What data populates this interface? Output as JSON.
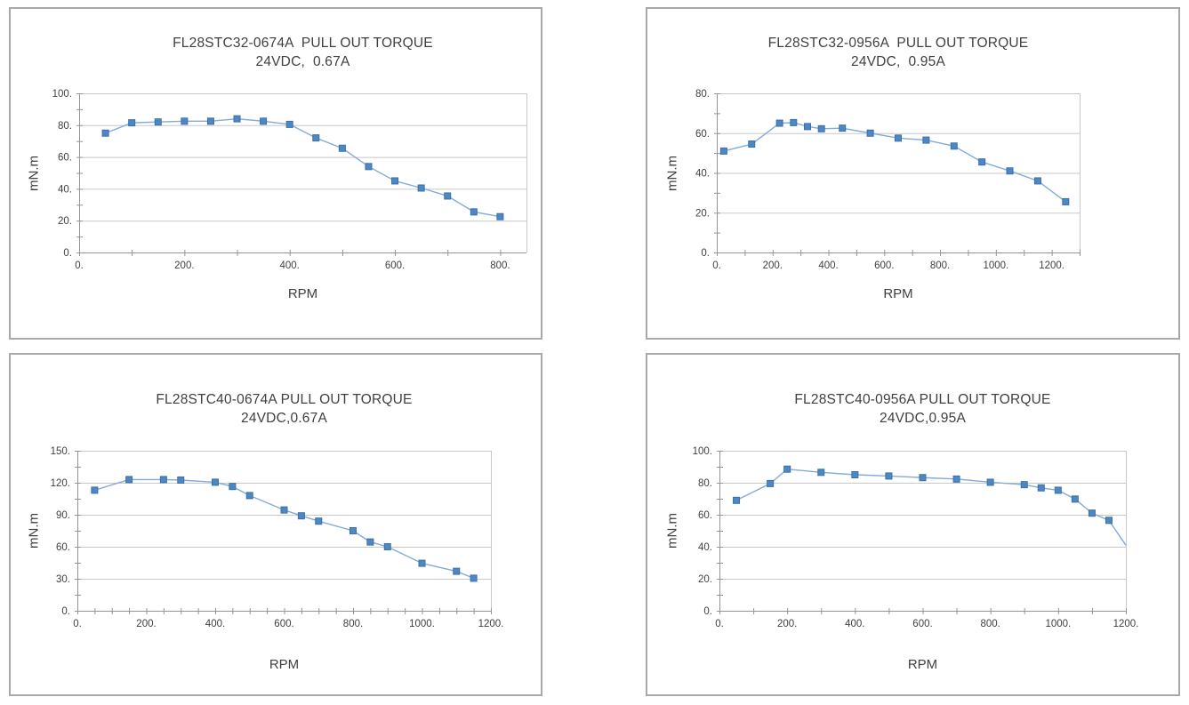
{
  "colors": {
    "marker_fill": "#4e88c4",
    "marker_border": "#3a70a8",
    "line": "#82abd8",
    "grid": "#c8c8c8",
    "axis": "#949494",
    "text": "#3f3f3f",
    "tile_border": "#a9a9a9"
  },
  "chart_data": [
    {
      "type": "line",
      "title": "FL28STC32-0674A  PULL OUT TORQUE",
      "subtitle": "24VDC,  0.67A",
      "xlabel": "RPM",
      "ylabel": "mN.m",
      "xlim": [
        0,
        850
      ],
      "ylim": [
        0,
        100
      ],
      "x_major": 200,
      "x_minor": 100,
      "y_major": 20,
      "y_minor": 10,
      "x_ticklabels": [
        "0.",
        "200.",
        "400.",
        "600.",
        "800."
      ],
      "y_ticklabels": [
        "0.",
        "20.",
        "40.",
        "60.",
        "80.",
        "100."
      ],
      "grid": "horizontal",
      "legend": "none",
      "points": [
        [
          50,
          75
        ],
        [
          100,
          81.5
        ],
        [
          150,
          82
        ],
        [
          200,
          82.5
        ],
        [
          250,
          82.5
        ],
        [
          300,
          84
        ],
        [
          350,
          82.5
        ],
        [
          400,
          80.5
        ],
        [
          450,
          72
        ],
        [
          500,
          65.5
        ],
        [
          550,
          54
        ],
        [
          600,
          45
        ],
        [
          650,
          40.5
        ],
        [
          700,
          35.5
        ],
        [
          750,
          25.5
        ],
        [
          800,
          22.5
        ]
      ],
      "last_point_has_marker": true
    },
    {
      "type": "line",
      "title": "FL28STC32-0956A  PULL OUT TORQUE",
      "subtitle": "24VDC,  0.95A",
      "xlabel": "RPM",
      "ylabel": "mN.m",
      "xlim": [
        0,
        1300
      ],
      "ylim": [
        0,
        80
      ],
      "x_major": 200,
      "x_minor": 100,
      "y_major": 20,
      "y_minor": 10,
      "x_ticklabels": [
        "0.",
        "200.",
        "400.",
        "600.",
        "800.",
        "1000.",
        "1200."
      ],
      "y_ticklabels": [
        "0.",
        "20.",
        "40.",
        "60.",
        "80."
      ],
      "grid": "horizontal",
      "legend": "none",
      "points": [
        [
          25,
          51
        ],
        [
          125,
          54.5
        ],
        [
          225,
          65
        ],
        [
          275,
          65.3
        ],
        [
          325,
          63.3
        ],
        [
          375,
          62.2
        ],
        [
          450,
          62.5
        ],
        [
          550,
          60
        ],
        [
          650,
          57.5
        ],
        [
          750,
          56.5
        ],
        [
          850,
          53.5
        ],
        [
          950,
          45.5
        ],
        [
          1050,
          41
        ],
        [
          1150,
          36
        ],
        [
          1250,
          25.5
        ]
      ],
      "last_point_has_marker": true
    },
    {
      "type": "line",
      "title": "FL28STC40-0674A PULL OUT TORQUE",
      "subtitle": "24VDC,0.67A",
      "xlabel": "RPM",
      "ylabel": "mN.m",
      "xlim": [
        0,
        1200
      ],
      "ylim": [
        0,
        150
      ],
      "x_major": 200,
      "x_minor": 50,
      "y_major": 30,
      "y_minor": 15,
      "x_ticklabels": [
        "0.",
        "200.",
        "400.",
        "600.",
        "800.",
        "1000.",
        "1200."
      ],
      "y_ticklabels": [
        "0.",
        "30.",
        "60.",
        "90.",
        "120.",
        "150."
      ],
      "grid": "horizontal",
      "legend": "none",
      "points": [
        [
          50,
          113
        ],
        [
          150,
          123
        ],
        [
          250,
          123
        ],
        [
          300,
          122.5
        ],
        [
          400,
          120.5
        ],
        [
          450,
          116.5
        ],
        [
          500,
          108
        ],
        [
          600,
          94.5
        ],
        [
          650,
          89
        ],
        [
          700,
          84
        ],
        [
          800,
          75
        ],
        [
          850,
          64.5
        ],
        [
          900,
          60
        ],
        [
          1000,
          44.5
        ],
        [
          1100,
          37
        ],
        [
          1150,
          30.5
        ]
      ],
      "last_point_has_marker": true
    },
    {
      "type": "line",
      "title": "FL28STC40-0956A PULL OUT TORQUE",
      "subtitle": "24VDC,0.95A",
      "xlabel": "RPM",
      "ylabel": "mN.m",
      "xlim": [
        0,
        1200
      ],
      "ylim": [
        0,
        100
      ],
      "x_major": 200,
      "x_minor": 100,
      "y_major": 20,
      "y_minor": 10,
      "x_ticklabels": [
        "0.",
        "200.",
        "400.",
        "600.",
        "800.",
        "1000.",
        "1200."
      ],
      "y_ticklabels": [
        "0.",
        "20.",
        "40.",
        "60.",
        "80.",
        "100."
      ],
      "grid": "horizontal",
      "legend": "none",
      "points": [
        [
          50,
          69
        ],
        [
          150,
          79.5
        ],
        [
          200,
          88.5
        ],
        [
          300,
          86.5
        ],
        [
          400,
          85
        ],
        [
          500,
          84.2
        ],
        [
          600,
          83.2
        ],
        [
          700,
          82.3
        ],
        [
          800,
          80.3
        ],
        [
          900,
          78.8
        ],
        [
          950,
          76.8
        ],
        [
          1000,
          75.3
        ],
        [
          1050,
          69.8
        ],
        [
          1100,
          61
        ],
        [
          1150,
          56.5
        ],
        [
          1200,
          41
        ]
      ],
      "last_point_has_marker": false
    }
  ]
}
